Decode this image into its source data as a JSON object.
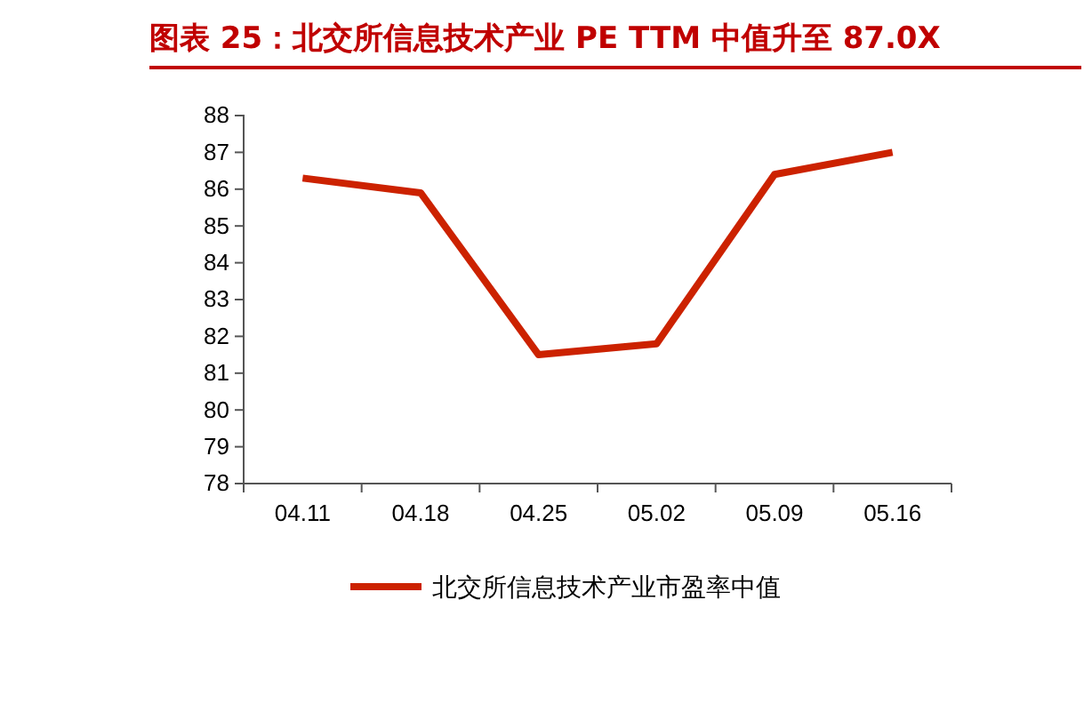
{
  "chart_data": {
    "type": "line",
    "title": "图表 25：北交所信息技术产业 PE TTM 中值升至 87.0X",
    "categories": [
      "04.11",
      "04.18",
      "04.25",
      "05.02",
      "05.09",
      "05.16"
    ],
    "series": [
      {
        "name": "北交所信息技术产业市盈率中值",
        "color": "#cc2200",
        "values": [
          86.3,
          85.9,
          81.5,
          81.8,
          86.4,
          87.0
        ]
      }
    ],
    "ylim": [
      78,
      88
    ],
    "yticks": [
      78,
      79,
      80,
      81,
      82,
      83,
      84,
      85,
      86,
      87,
      88
    ],
    "grid": false,
    "legend": "bottom",
    "marker": "none",
    "line_style": "solid"
  }
}
